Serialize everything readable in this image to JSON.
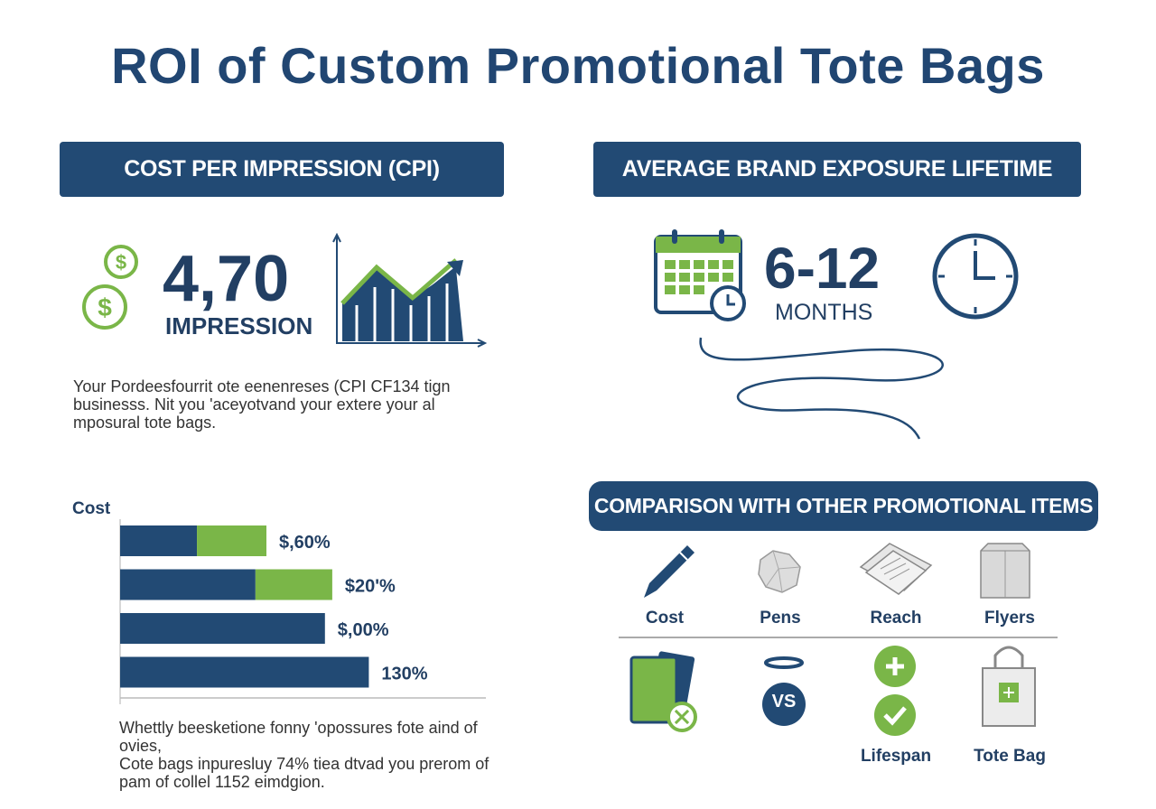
{
  "title": "ROI of Custom Promotional Tote Bags",
  "colors": {
    "navy": "#224a74",
    "green": "#7ab648"
  },
  "cpi": {
    "header": "COST PER IMPRESSION (CPI)",
    "value": "4,70",
    "unit": "IMPRESSION",
    "icons": [
      "dollar-coin-icon",
      "trend-chart-icon"
    ],
    "paragraph": [
      "Your Pordeesfourrit ote eenenreses (CPI CF134 tign",
      "businesss. Nit you 'aceyotvand your extere your al",
      "mposural tote bags."
    ]
  },
  "exposure": {
    "header": "AVERAGE BRAND EXPOSURE LIFETIME",
    "value": "6-12",
    "unit": "MONTHS",
    "icons": [
      "calendar-icon",
      "clock-icon"
    ]
  },
  "cost_chart": {
    "axis_label": "Cost",
    "paragraph": [
      "Whettly beesketione fonny 'opossures fote aind of ovies,",
      "Cote bags inpuresluy 74% tiea dtvad you prerom of",
      "pam of collel 1152 eimdgion."
    ]
  },
  "chart_data": {
    "type": "bar",
    "orientation": "horizontal",
    "ylabel": "Cost",
    "bars": [
      {
        "label": "$,60%",
        "segments": [
          {
            "color": "#224a74",
            "fraction": 0.21
          },
          {
            "color": "#7ab648",
            "fraction": 0.19
          }
        ]
      },
      {
        "label": "$20'%",
        "segments": [
          {
            "color": "#224a74",
            "fraction": 0.37
          },
          {
            "color": "#7ab648",
            "fraction": 0.21
          }
        ]
      },
      {
        "label": "$,00%",
        "segments": [
          {
            "color": "#224a74",
            "fraction": 0.56
          }
        ]
      },
      {
        "label": "130%",
        "segments": [
          {
            "color": "#224a74",
            "fraction": 0.68
          }
        ]
      }
    ]
  },
  "comparison": {
    "header": "COMPARISON WITH OTHER PROMOTIONAL ITEMS",
    "row1": [
      {
        "label": "Cost",
        "icon": "pen-icon"
      },
      {
        "label": "Pens",
        "icon": "crumpled-paper-icon"
      },
      {
        "label": "Reach",
        "icon": "flyers-icon"
      },
      {
        "label": "Flyers",
        "icon": "box-bag-icon"
      }
    ],
    "vs": "VS",
    "row2": [
      {
        "label": "",
        "icon": "wallet-icon"
      },
      {
        "label": "",
        "icon": "vs-icon"
      },
      {
        "label": "Lifespan",
        "icon": "plus-check-icon"
      },
      {
        "label": "Tote Bag",
        "icon": "tote-bag-icon"
      }
    ]
  }
}
